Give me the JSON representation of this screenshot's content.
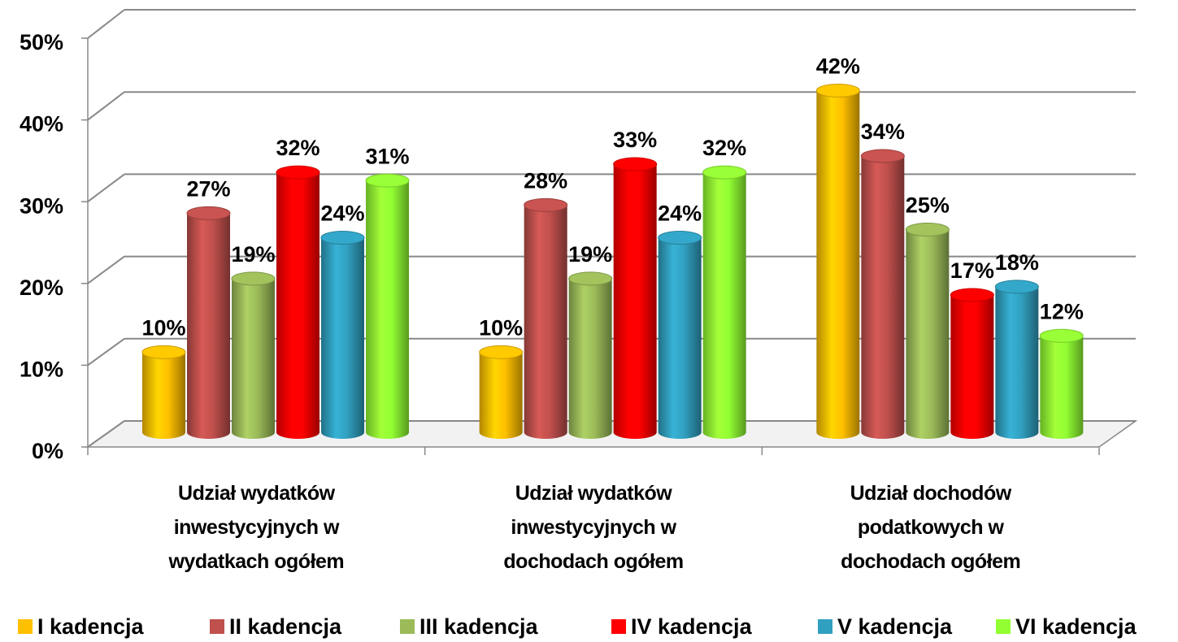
{
  "chart_data": {
    "type": "bar3d",
    "categories": [
      "Udział wydatków inwestycyjnych w wydatkach ogółem",
      "Udział wydatków inwestycyjnych w dochodach ogółem",
      "Udział dochodów podatkowych w dochodach ogółem"
    ],
    "series": [
      {
        "name": "I kadencja",
        "color": "#ffc000",
        "values": [
          10,
          10,
          42
        ],
        "value_labels": [
          "10%",
          "10%",
          "42%"
        ]
      },
      {
        "name": "II kadencja",
        "color": "#c0504d",
        "values": [
          27,
          28,
          34
        ],
        "value_labels": [
          "27%",
          "28%",
          "34%"
        ]
      },
      {
        "name": "III kadencja",
        "color": "#9bbb59",
        "values": [
          19,
          19,
          25
        ],
        "value_labels": [
          "19%",
          "19%",
          "25%"
        ]
      },
      {
        "name": "IV kadencja",
        "color": "#ff0000",
        "values": [
          32,
          33,
          17
        ],
        "value_labels": [
          "32%",
          "33%",
          "17%"
        ]
      },
      {
        "name": "V kadencja",
        "color": "#31a0c0",
        "values": [
          24,
          24,
          18
        ],
        "value_labels": [
          "24%",
          "24%",
          "18%"
        ]
      },
      {
        "name": "VI kadencja",
        "color": "#92ff33",
        "values": [
          31,
          32,
          12
        ],
        "value_labels": [
          "31%",
          "32%",
          "12%"
        ]
      }
    ],
    "ylim": [
      0,
      50
    ],
    "yticks": [
      {
        "value": 0,
        "label": "0%"
      },
      {
        "value": 10,
        "label": "10%"
      },
      {
        "value": 20,
        "label": "20%"
      },
      {
        "value": 30,
        "label": "30%"
      },
      {
        "value": 40,
        "label": "40%"
      },
      {
        "value": 50,
        "label": "50%"
      }
    ],
    "grid": true,
    "legend": "bottom"
  }
}
